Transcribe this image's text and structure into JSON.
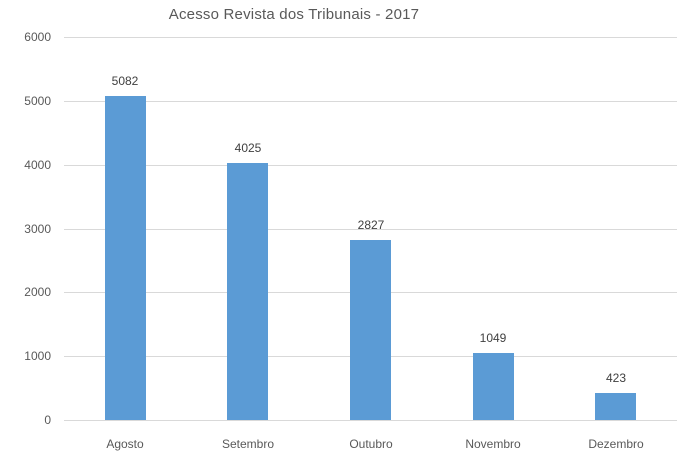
{
  "chart_data": {
    "type": "bar",
    "title": "Acesso Revista dos Tribunais - 2017",
    "categories": [
      "Agosto",
      "Setembro",
      "Outubro",
      "Novembro",
      "Dezembro"
    ],
    "values": [
      5082,
      4025,
      2827,
      1049,
      423
    ],
    "data_labels": [
      "5082",
      "4025",
      "2827",
      "1049",
      "423"
    ],
    "xlabel": "",
    "ylabel": "",
    "ylim": [
      0,
      6000
    ],
    "ytick_step": 1000,
    "yticks": [
      0,
      1000,
      2000,
      3000,
      4000,
      5000,
      6000
    ],
    "ytick_labels": [
      "0",
      "1000",
      "2000",
      "3000",
      "4000",
      "5000",
      "6000"
    ],
    "grid": "horizontal",
    "legend": "none",
    "colors": {
      "bar": "#5B9BD5",
      "gridline": "#D9D9D9",
      "axis_line": "#D9D9D9",
      "title_text": "#595959",
      "tick_text": "#595959",
      "data_label_text": "#404040",
      "background": "#FFFFFF"
    }
  }
}
